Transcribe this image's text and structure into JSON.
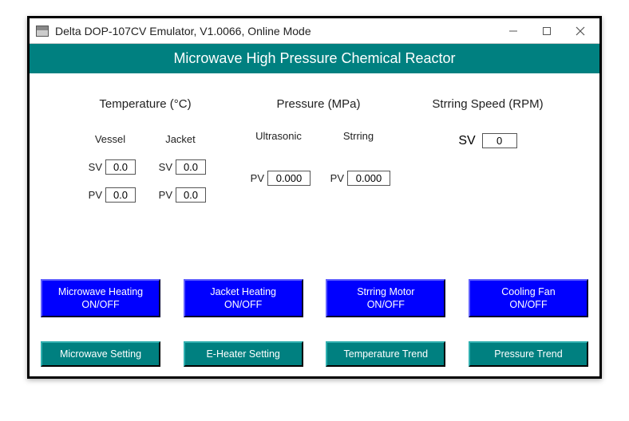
{
  "window": {
    "title": "Delta DOP-107CV Emulator, V1.0066, Online Mode"
  },
  "banner": "Microwave High Pressure Chemical Reactor",
  "sections": {
    "temperature": {
      "title": "Temperature (°C)",
      "vessel_label": "Vessel",
      "jacket_label": "Jacket",
      "sv_label": "SV",
      "pv_label": "PV",
      "vessel_sv": "0.0",
      "vessel_pv": "0.0",
      "jacket_sv": "0.0",
      "jacket_pv": "0.0"
    },
    "pressure": {
      "title": "Pressure (MPa)",
      "ultrasonic_label": "Ultrasonic",
      "stirring_label": "Strring",
      "pv_label": "PV",
      "ultrasonic_pv": "0.000",
      "stirring_pv": "0.000"
    },
    "stirring": {
      "title": "Strring Speed (RPM)",
      "sv_label": "SV",
      "sv": "0"
    }
  },
  "buttons": {
    "microwave_heating": "Microwave Heating\nON/OFF",
    "jacket_heating": "Jacket Heating\nON/OFF",
    "stirring_motor": "Strring Motor\nON/OFF",
    "cooling_fan": "Cooling Fan\nON/OFF",
    "microwave_setting": "Microwave Setting",
    "eheater_setting": "E-Heater Setting",
    "temperature_trend": "Temperature Trend",
    "pressure_trend": "Pressure Trend"
  },
  "colors": {
    "banner_bg": "#008080",
    "blue_btn": "#0000ff",
    "teal_btn": "#008080",
    "frame_border": "#000000"
  }
}
